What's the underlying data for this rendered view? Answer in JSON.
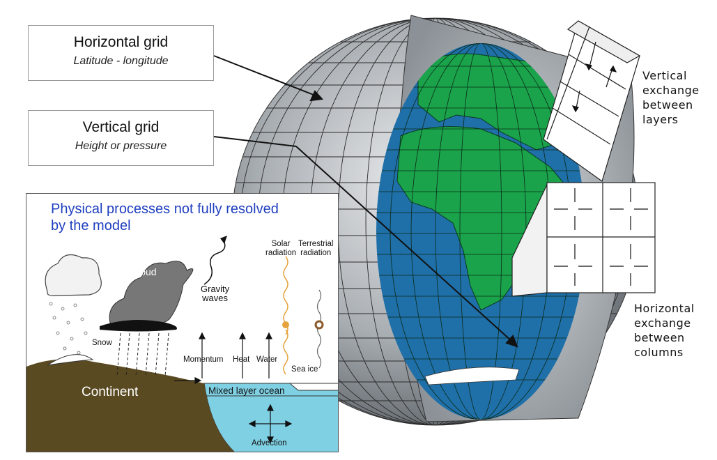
{
  "callouts": {
    "horizontal_grid": {
      "title": "Horizontal grid",
      "subtitle": "Latitude - longitude"
    },
    "vertical_grid": {
      "title": "Vertical grid",
      "subtitle": "Height or pressure"
    }
  },
  "labels": {
    "vertical_exchange": [
      "Vertical",
      "exchange",
      "between",
      "layers"
    ],
    "horizontal_exchange": [
      "Horizontal",
      "exchange",
      "between",
      "columns"
    ]
  },
  "inset": {
    "title": "Physical processes not fully resolved by the model",
    "cloud": "Cloud",
    "gravity_waves": [
      "Gravity",
      "waves"
    ],
    "solar_radiation": [
      "Solar",
      "radiation"
    ],
    "terrestrial_radiation": [
      "Terrestrial",
      "radiation"
    ],
    "snow": "Snow",
    "momentum": "Momentum",
    "heat": "Heat",
    "water": "Water",
    "sea_ice": "Sea ice",
    "continent": "Continent",
    "mixed_layer_ocean": "Mixed layer ocean",
    "advection": "Advection"
  },
  "colors": {
    "land": "#1aa34a",
    "ocean": "#1f6fa8",
    "shell": "#9aa0a6",
    "grid_line": "#222222",
    "continent_soil": "#5a4a22",
    "ocean_inset": "#7fd0e3",
    "title_blue": "#1f3fbf",
    "solar": "#e6a23c"
  }
}
